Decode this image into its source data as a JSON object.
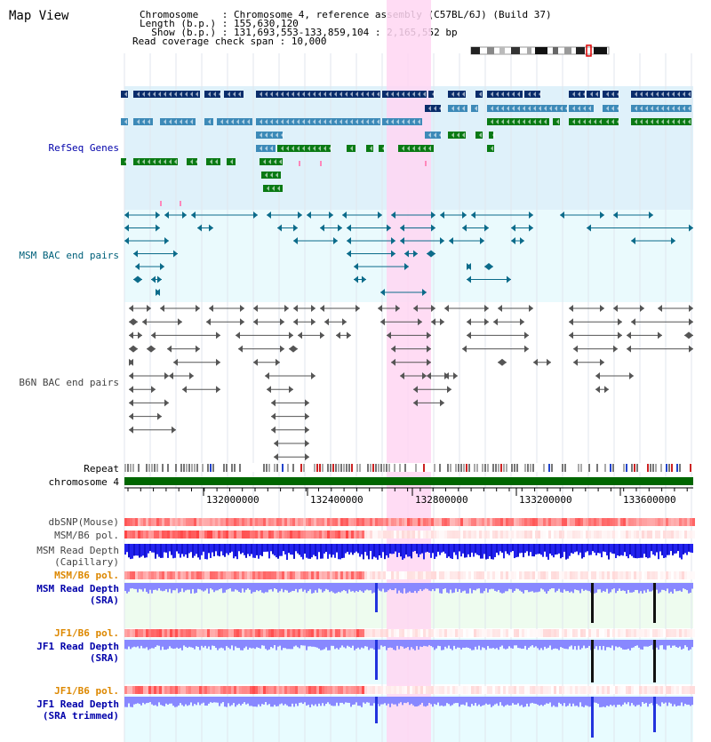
{
  "title": "Map View",
  "info": {
    "chromosome": "Chromosome    : Chromosome 4, reference assembly (C57BL/6J) (Build 37)",
    "length": "Length (b.p.) : 155,630,120",
    "show": "  Show (b.p.) : 131,693,553-133,859,104 : 2,165,552 bp",
    "coverage": "Read coverage check span : 10,000"
  },
  "labels": {
    "refseq": "RefSeq Genes",
    "msm_bac": "MSM BAC end pairs",
    "b6n_bac": "B6N BAC end pairs",
    "repeat": "Repeat",
    "chromosome": "chromosome 4",
    "dbsnp": "dbSNP(Mouse)",
    "msm_b6_pol1": "MSM/B6 pol.",
    "msm_depth_cap_1": "MSM Read Depth",
    "msm_depth_cap_2": "(Capillary)",
    "msm_b6_pol2": "MSM/B6 pol.",
    "msm_depth_sra_1": "MSM Read Depth",
    "msm_depth_sra_2": "(SRA)",
    "jf1_b6_pol1": "JF1/B6 pol.",
    "jf1_depth_sra_1": "JF1 Read Depth",
    "jf1_depth_sra_2": "(SRA)",
    "jf1_b6_pol2": "JF1/B6 pol.",
    "jf1_depth_trim_1": "JF1 Read Depth",
    "jf1_depth_trim_2": "(SRA trimmed)"
  },
  "axis": {
    "ticks": [
      "132000000",
      "132400000",
      "132800000",
      "133200000",
      "133600000"
    ]
  },
  "colors": {
    "refseq_dark": "#0a2d6b",
    "refseq_mid": "#3d8ab8",
    "refseq_green": "#0a7a14",
    "msm_bac": "#0b6b8a",
    "b6n_bac": "#555555",
    "highlight": "#ffd6f2",
    "chrom_green": "#006600",
    "depth_blue": "#2222ee",
    "depth_light": "#8888ff",
    "label_blue": "#0000aa",
    "label_orange": "#dd8800",
    "label_teal": "#00607a"
  }
}
